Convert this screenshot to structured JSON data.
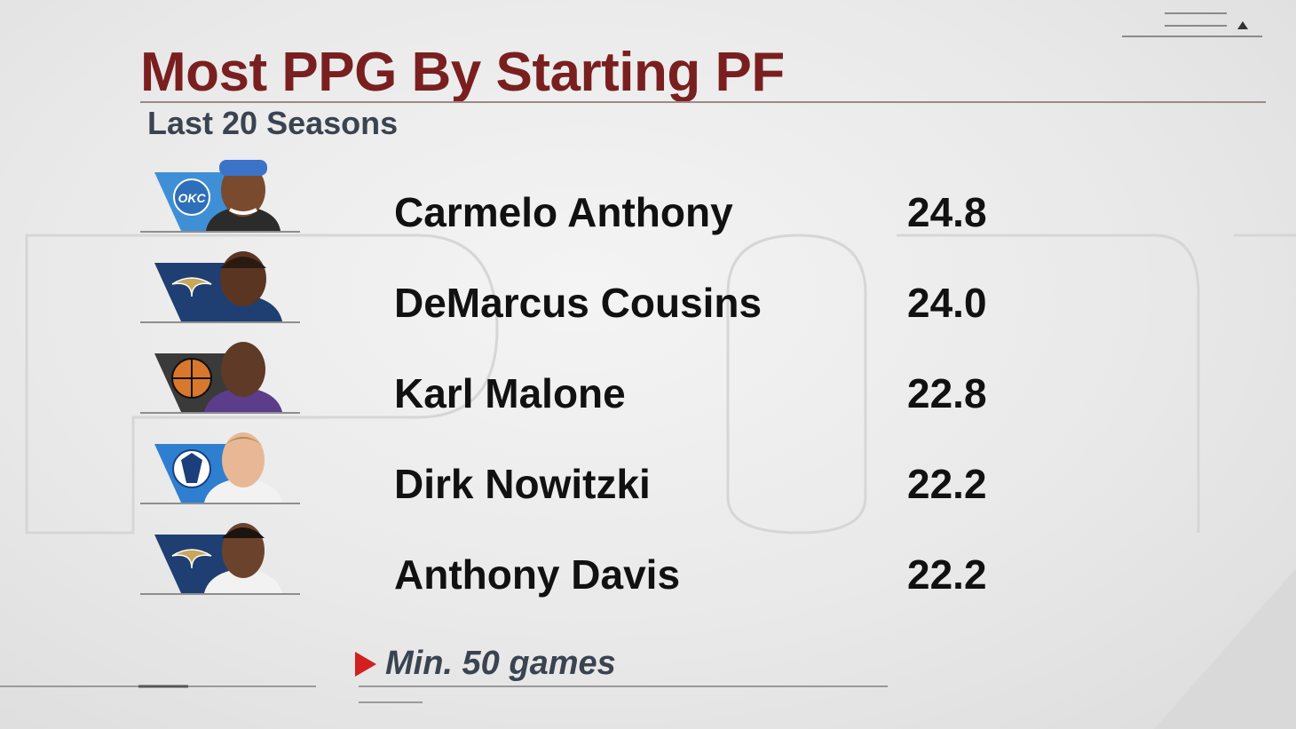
{
  "title": "Most PPG By Starting PF",
  "subtitle": "Last 20 Seasons",
  "colors": {
    "title": "#7a1f1f",
    "subtitle": "#3a4450",
    "accent_arrow": "#d21f1f"
  },
  "players": [
    {
      "name": "Carmelo Anthony",
      "ppg": "24.8",
      "team_logo": "okc-thunder-logo",
      "logo_text": "OKC",
      "team_color": "#3f8fd6",
      "jersey": "#3f8fd6",
      "headband": "#3b73c9"
    },
    {
      "name": "DeMarcus Cousins",
      "ppg": "24.0",
      "team_logo": "pelicans-logo",
      "logo_text": "",
      "team_color": "#1f3f73",
      "jersey": "#1f3f73",
      "headband": ""
    },
    {
      "name": "Karl Malone",
      "ppg": "22.8",
      "team_logo": "hall-of-fame-logo",
      "logo_text": "",
      "team_color": "#3a3a3a",
      "jersey": "#5b3d8c",
      "headband": ""
    },
    {
      "name": "Dirk Nowitzki",
      "ppg": "22.2",
      "team_logo": "mavericks-logo",
      "logo_text": "",
      "team_color": "#2f7fd0",
      "jersey": "#f2f2f2",
      "headband": ""
    },
    {
      "name": "Anthony Davis",
      "ppg": "22.2",
      "team_logo": "pelicans-logo",
      "logo_text": "",
      "team_color": "#1f3f73",
      "jersey": "#f2f2f2",
      "headband": ""
    }
  ],
  "footnote": "Min. 50 games"
}
